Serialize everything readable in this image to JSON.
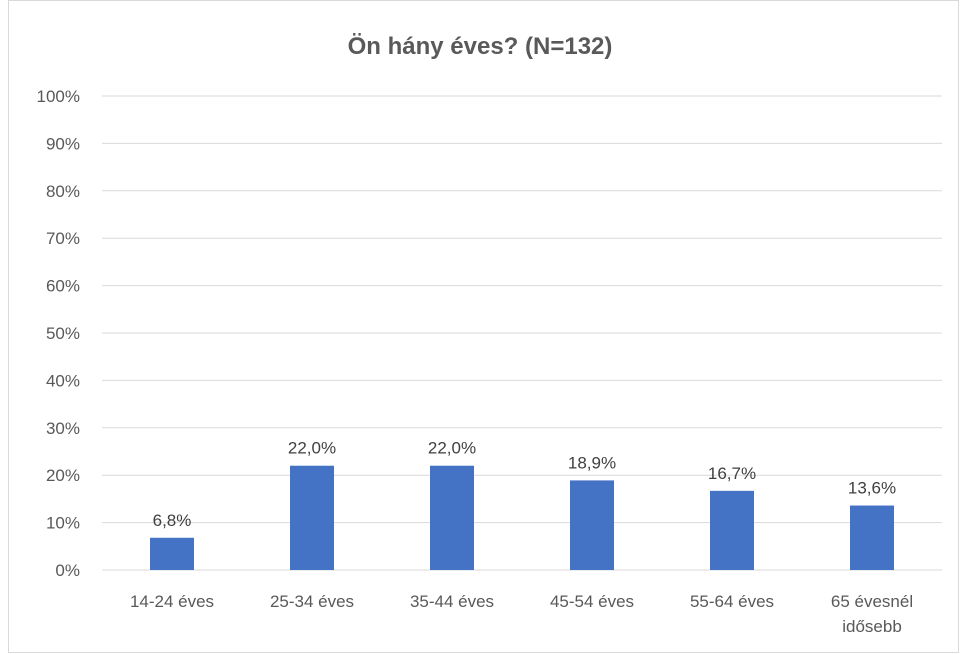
{
  "chart_data": {
    "type": "bar",
    "title": "Ön hány éves? (N=132)",
    "xlabel": "",
    "ylabel": "",
    "categories": [
      "14-24 éves",
      "25-34 éves",
      "35-44 éves",
      "45-54 éves",
      "55-64 éves",
      "65 évesnél idősebb"
    ],
    "category_lines": [
      [
        "14-24 éves"
      ],
      [
        "25-34 éves"
      ],
      [
        "35-44 éves"
      ],
      [
        "45-54 éves"
      ],
      [
        "55-64 éves"
      ],
      [
        "65 évesnél",
        "idősebb"
      ]
    ],
    "values": [
      6.8,
      22.0,
      22.0,
      18.9,
      16.7,
      13.6
    ],
    "data_labels": [
      "6,8%",
      "22,0%",
      "22,0%",
      "18,9%",
      "16,7%",
      "13,6%"
    ],
    "ylim": [
      0,
      100
    ],
    "yticks": [
      "0%",
      "10%",
      "20%",
      "30%",
      "40%",
      "50%",
      "60%",
      "70%",
      "80%",
      "90%",
      "100%"
    ],
    "grid": true,
    "legend": "none",
    "bar_color": "#4472c4",
    "grid_color": "#d9d9d9"
  }
}
